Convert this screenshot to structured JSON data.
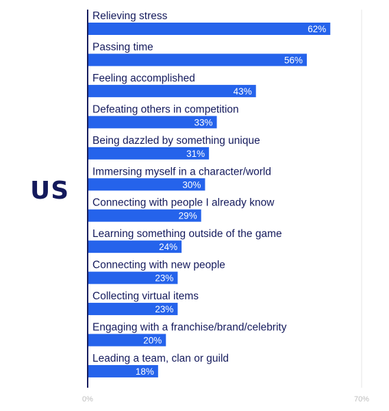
{
  "region_label": "US",
  "colors": {
    "bar": "#2563eb",
    "label_text": "#141a5c",
    "value_text": "#ffffff",
    "axis": "#141a5c",
    "gridline": "#e6e6e6",
    "tick_text": "#bdbdbd"
  },
  "chart_data": {
    "type": "bar",
    "orientation": "horizontal",
    "title": "",
    "xlabel": "",
    "ylabel": "",
    "xlim": [
      0,
      70
    ],
    "x_ticks": [
      "0%",
      "70%"
    ],
    "categories": [
      "Relieving stress",
      "Passing time",
      "Feeling accomplished",
      "Defeating others in competition",
      "Being dazzled by something unique",
      "Immersing myself in a character/world",
      "Connecting with people I already know",
      "Learning something outside of the game",
      "Connecting with new people",
      "Collecting virtual items",
      "Engaging with a franchise/brand/celebrity",
      "Leading a team, clan or guild"
    ],
    "values": [
      62,
      56,
      43,
      33,
      31,
      30,
      29,
      24,
      23,
      23,
      20,
      18
    ],
    "value_labels": [
      "62%",
      "56%",
      "43%",
      "33%",
      "31%",
      "30%",
      "29%",
      "24%",
      "23%",
      "23%",
      "20%",
      "18%"
    ],
    "grid": false
  }
}
